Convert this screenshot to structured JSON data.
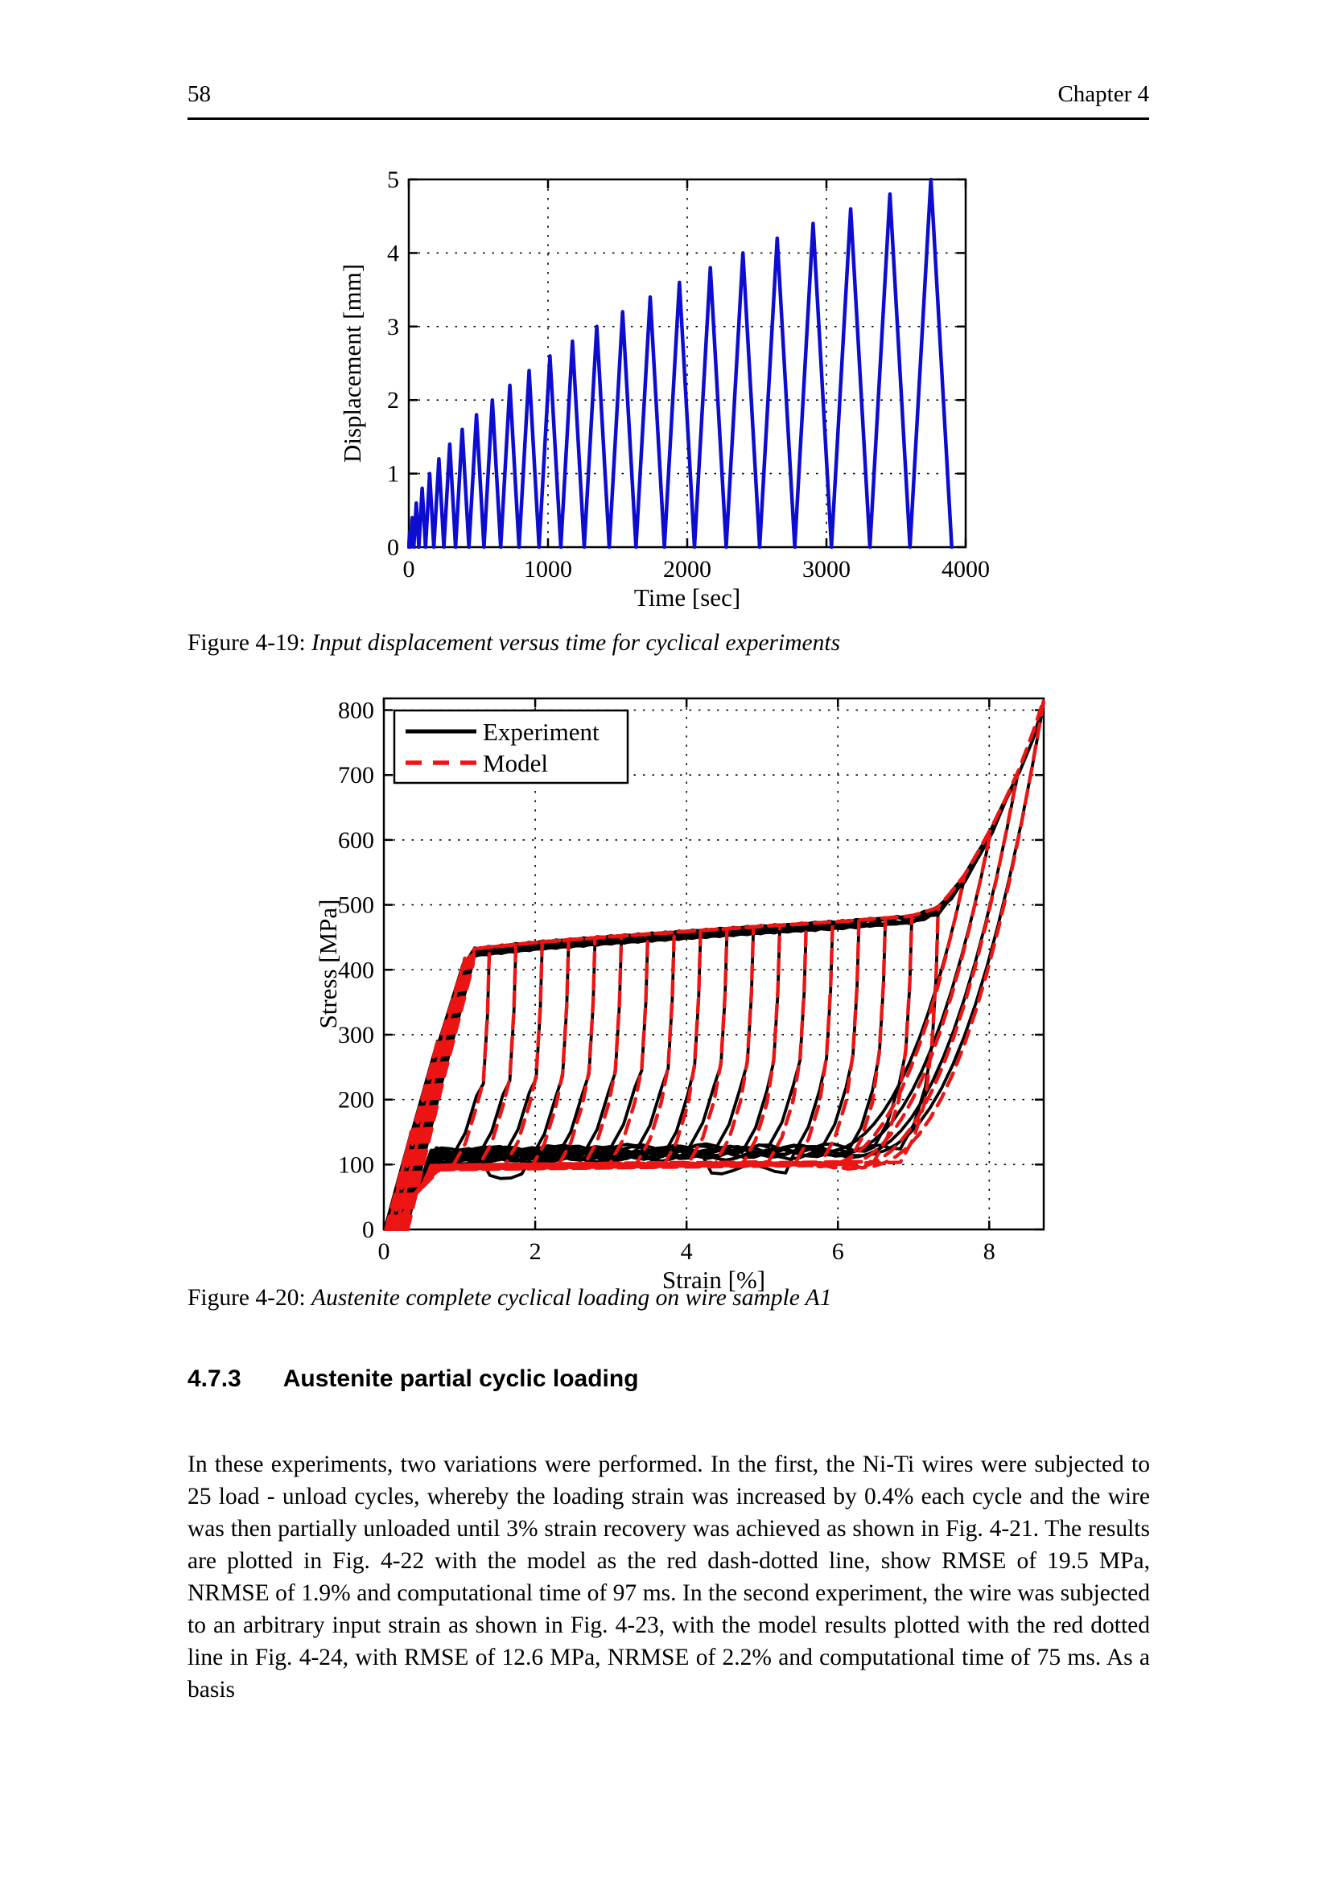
{
  "header": {
    "page_number": "58",
    "chapter": "Chapter 4"
  },
  "figure1": {
    "caption_prefix": "Figure 4-19: ",
    "caption_italic": "Input displacement versus time for cyclical experiments"
  },
  "figure2": {
    "caption_prefix": "Figure 4-20: ",
    "caption_italic": "Austenite complete cyclical loading on wire sample A1"
  },
  "section": {
    "number": "4.7.3",
    "title": "Austenite partial cyclic loading"
  },
  "paragraph": "In these experiments, two variations were performed. In the first, the Ni-Ti wires were subjected to 25 load - unload cycles, whereby the loading strain was increased by 0.4% each cycle and the wire was then partially unloaded until 3% strain recovery was achieved as shown in Fig. 4-21. The results are plotted in Fig. 4-22 with the model as the red dash-dotted line, show RMSE of 19.5 MPa, NRMSE of 1.9% and computational time of 97 ms. In the second experiment, the wire was subjected to an arbitrary input strain as shown in Fig. 4-23, with the model results plotted with the red dotted line in Fig. 4-24, with RMSE of 12.6 MPa, NRMSE of 2.2% and computational time of 75 ms. As a basis",
  "chart_data": [
    {
      "type": "line",
      "title": "",
      "xlabel": "Time [sec]",
      "ylabel": "Displacement [mm]",
      "xlim": [
        0,
        4000
      ],
      "ylim": [
        0,
        5
      ],
      "xticks": [
        0,
        1000,
        2000,
        3000,
        4000
      ],
      "yticks": [
        0,
        1,
        2,
        3,
        4,
        5
      ],
      "grid": true,
      "line_color": "#0d0dd2",
      "description": "Triangular displacement cycles; peak grows 0.2 mm per cycle, 25 cycles up to 5 mm, constant rate, total span about 3900 s",
      "points": [
        [
          0,
          0
        ],
        [
          6,
          0.2
        ],
        [
          12,
          0
        ],
        [
          24,
          0.4
        ],
        [
          36,
          0
        ],
        [
          54,
          0.6
        ],
        [
          72,
          0
        ],
        [
          96,
          0.8
        ],
        [
          120,
          0
        ],
        [
          150,
          1.0
        ],
        [
          180,
          0
        ],
        [
          216,
          1.2
        ],
        [
          252,
          0
        ],
        [
          294,
          1.4
        ],
        [
          336,
          0
        ],
        [
          384,
          1.6
        ],
        [
          432,
          0
        ],
        [
          486,
          1.8
        ],
        [
          540,
          0
        ],
        [
          600,
          2.0
        ],
        [
          660,
          0
        ],
        [
          726,
          2.2
        ],
        [
          792,
          0
        ],
        [
          864,
          2.4
        ],
        [
          936,
          0
        ],
        [
          1014,
          2.6
        ],
        [
          1092,
          0
        ],
        [
          1176,
          2.8
        ],
        [
          1260,
          0
        ],
        [
          1350,
          3.0
        ],
        [
          1440,
          0
        ],
        [
          1536,
          3.2
        ],
        [
          1632,
          0
        ],
        [
          1734,
          3.4
        ],
        [
          1836,
          0
        ],
        [
          1944,
          3.6
        ],
        [
          2052,
          0
        ],
        [
          2166,
          3.8
        ],
        [
          2280,
          0
        ],
        [
          2400,
          4.0
        ],
        [
          2520,
          0
        ],
        [
          2646,
          4.2
        ],
        [
          2772,
          0
        ],
        [
          2904,
          4.4
        ],
        [
          3036,
          0
        ],
        [
          3174,
          4.6
        ],
        [
          3312,
          0
        ],
        [
          3456,
          4.8
        ],
        [
          3600,
          0
        ],
        [
          3750,
          5.0
        ],
        [
          3900,
          0
        ]
      ]
    },
    {
      "type": "line",
      "title": "",
      "xlabel": "Strain [%]",
      "ylabel": "Stress [MPa]",
      "xlim": [
        0,
        8.72
      ],
      "ylim": [
        0,
        818
      ],
      "xticks": [
        0,
        2,
        4,
        6,
        8
      ],
      "yticks": [
        0,
        100,
        200,
        300,
        400,
        500,
        600,
        700,
        800
      ],
      "grid": true,
      "legend": {
        "position": "top-left",
        "entries": [
          {
            "label": "Experiment",
            "color": "#000000",
            "style": "solid"
          },
          {
            "label": "Model",
            "color": "#ed1414",
            "style": "dashed"
          }
        ]
      },
      "description": "Superelastic cyclic stress-strain hysteresis loops; 25 cycles, max strain increases ~0.35% per cycle to 8.7%, upper plateau ~425-490 MPa, lower plateau ~95-160 MPa, final stiff rise to ~800 MPa",
      "cycles": 25,
      "strain_step": 0.3488,
      "loading_backbone": [
        [
          0,
          0
        ],
        [
          0.5,
          210
        ],
        [
          0.95,
          392
        ],
        [
          1.1,
          426
        ],
        [
          2,
          437
        ],
        [
          3,
          446
        ],
        [
          4,
          454
        ],
        [
          5,
          462
        ],
        [
          6,
          469
        ],
        [
          7,
          478
        ],
        [
          7.35,
          492
        ],
        [
          7.7,
          545
        ],
        [
          8.0,
          607
        ],
        [
          8.3,
          678
        ],
        [
          8.5,
          733
        ],
        [
          8.72,
          812
        ]
      ],
      "upper_plateau_mpa": [
        425,
        490
      ],
      "lower_plateau_mpa": [
        95,
        160
      ],
      "final_stress_mpa": 800,
      "max_strain_pct": 8.7
    }
  ]
}
